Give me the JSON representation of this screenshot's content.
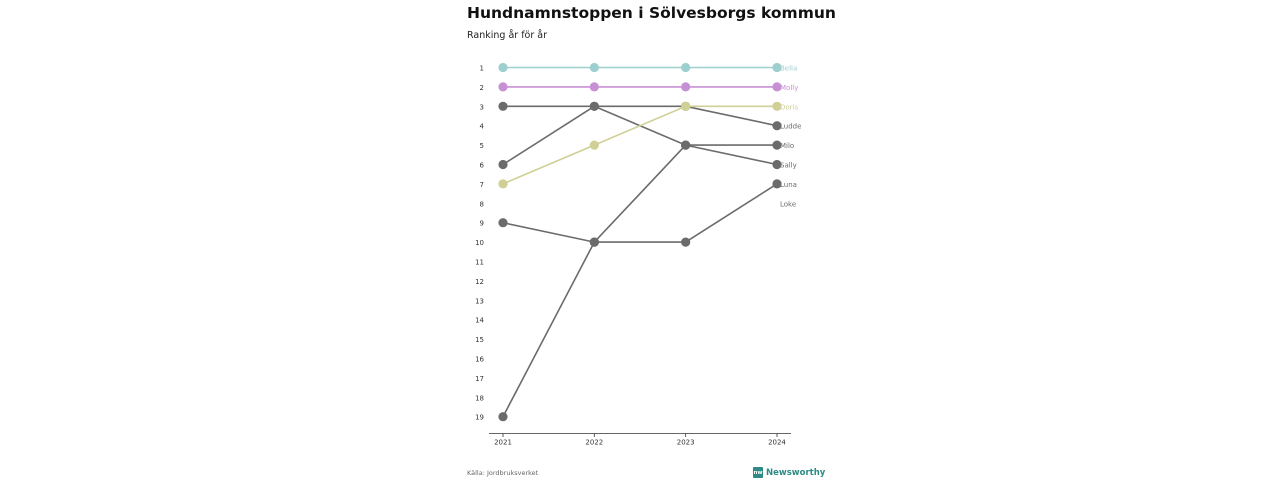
{
  "title": "Hundnamnstoppen i Sölvesborgs kommun",
  "subtitle": "Ranking år för år",
  "source": "Källa: Jordbruksverket",
  "brand": {
    "name": "Newsworthy",
    "icon": "newsworthy-logo-icon"
  },
  "colors": {
    "bella": "#9ecfcf",
    "molly": "#c890d4",
    "doris": "#cfcf96",
    "default": "#6b6b6b",
    "axis": "#333333"
  },
  "chart_data": {
    "type": "line",
    "title": "Hundnamnstoppen i Sölvesborgs kommun",
    "subtitle": "Ranking år för år",
    "x": [
      "2021",
      "2022",
      "2023",
      "2024"
    ],
    "y_ticks": [
      1,
      2,
      3,
      4,
      5,
      6,
      7,
      8,
      9,
      10,
      11,
      12,
      13,
      14,
      15,
      16,
      17,
      18,
      19
    ],
    "ylim": [
      19,
      1
    ],
    "y_inverted": true,
    "grid": false,
    "series": [
      {
        "name": "Bella",
        "values": [
          1,
          1,
          1,
          1
        ],
        "color": "#9ecfcf"
      },
      {
        "name": "Molly",
        "values": [
          2,
          2,
          2,
          2
        ],
        "color": "#c890d4"
      },
      {
        "name": "Doris",
        "values": [
          7,
          5,
          3,
          3
        ],
        "color": "#cfcf96"
      },
      {
        "name": "Ludde",
        "values": [
          3,
          3,
          3,
          4
        ],
        "color": "#6b6b6b"
      },
      {
        "name": "Milo",
        "values": [
          19,
          10,
          5,
          5
        ],
        "color": "#6b6b6b"
      },
      {
        "name": "Sally",
        "values": [
          6,
          3,
          5,
          6
        ],
        "color": "#6b6b6b"
      },
      {
        "name": "Luna",
        "values": [
          9,
          10,
          10,
          7
        ],
        "color": "#6b6b6b"
      },
      {
        "name": "Loke",
        "values": [
          null,
          null,
          null,
          null
        ],
        "color": "#6b6b6b",
        "label_rank": 8
      }
    ]
  }
}
